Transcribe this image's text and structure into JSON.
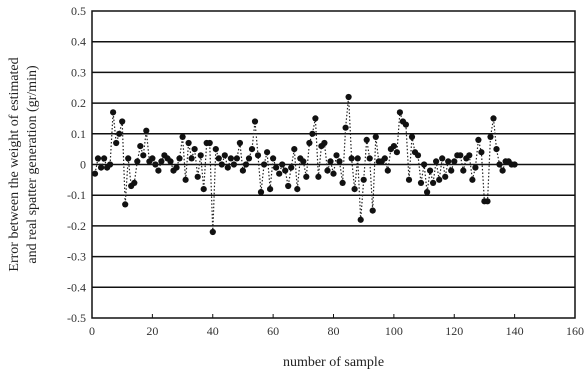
{
  "chart_data": {
    "type": "scatter",
    "title": "",
    "xlabel": "number of sample",
    "ylabel_lines": [
      "Error between the weight of estimated",
      "and real spatter generation (gr/min)"
    ],
    "xlim": [
      0,
      160
    ],
    "ylim": [
      -0.5,
      0.5
    ],
    "xticks": [
      0,
      20,
      40,
      60,
      80,
      100,
      120,
      140,
      160
    ],
    "yticks": [
      0.5,
      0.4,
      0.3,
      0.2,
      0.1,
      0,
      -0.1,
      -0.2,
      -0.3,
      -0.4,
      -0.5
    ],
    "grid": true,
    "connector": "dotted",
    "series": [
      {
        "x": [
          1,
          2,
          3,
          4,
          5,
          6,
          7,
          8,
          9,
          10,
          11,
          12,
          13,
          14,
          15,
          16,
          17,
          18,
          19,
          20,
          21,
          22,
          23,
          24,
          25,
          26,
          27,
          28,
          29,
          30,
          31,
          32,
          33,
          34,
          35,
          36,
          37,
          38,
          39,
          40,
          41,
          42,
          43,
          44,
          45,
          46,
          47,
          48,
          49,
          50,
          51,
          52,
          53,
          54,
          55,
          56,
          57,
          58,
          59,
          60,
          61,
          62,
          63,
          64,
          65,
          66,
          67,
          68,
          69,
          70,
          71,
          72,
          73,
          74,
          75,
          76,
          77,
          78,
          79,
          80,
          81,
          82,
          83,
          84,
          85,
          86,
          87,
          88,
          89,
          90,
          91,
          92,
          93,
          94,
          95,
          96,
          97,
          98,
          99,
          100,
          101,
          102,
          103,
          104,
          105,
          106,
          107,
          108,
          109,
          110,
          111,
          112,
          113,
          114,
          115,
          116,
          117,
          118,
          119,
          120,
          121,
          122,
          123,
          124,
          125,
          126,
          127,
          128,
          129,
          130,
          131,
          132,
          133,
          134,
          135,
          136,
          137,
          138,
          139,
          140
        ],
        "y": [
          -0.03,
          0.02,
          -0.01,
          0.02,
          -0.01,
          0,
          0.17,
          0.07,
          0.1,
          0.14,
          -0.13,
          0.02,
          -0.07,
          -0.06,
          0.01,
          0.06,
          0.03,
          0.11,
          0.01,
          0.02,
          0,
          -0.02,
          0.01,
          0.03,
          0.02,
          0.01,
          -0.02,
          -0.01,
          0.02,
          0.09,
          -0.05,
          0.07,
          0.02,
          0.05,
          -0.04,
          0.03,
          -0.08,
          0.07,
          0.07,
          -0.22,
          0.05,
          0.02,
          0,
          0.03,
          -0.01,
          0.02,
          0,
          0.02,
          0.07,
          -0.02,
          0,
          0.02,
          0.05,
          0.14,
          0.03,
          -0.09,
          0,
          0.04,
          -0.08,
          0.02,
          -0.01,
          -0.03,
          0,
          -0.02,
          -0.07,
          -0.01,
          0.05,
          -0.08,
          0.02,
          0.01,
          -0.04,
          0.07,
          0.1,
          0.15,
          -0.04,
          0.06,
          0.07,
          -0.02,
          0.01,
          -0.03,
          0.03,
          0.01,
          -0.06,
          0.12,
          0.22,
          0.02,
          -0.08,
          0.02,
          -0.18,
          -0.05,
          0.08,
          0.02,
          -0.15,
          0.09,
          0.01,
          0.01,
          0.02,
          -0.02,
          0.05,
          0.06,
          0.04,
          0.17,
          0.14,
          0.13,
          -0.05,
          0.09,
          0.04,
          0.03,
          -0.06,
          0,
          -0.09,
          -0.02,
          -0.06,
          0.01,
          -0.05,
          0.02,
          -0.04,
          0.01,
          -0.02,
          0.01,
          0.03,
          0.03,
          -0.02,
          0.02,
          0.03,
          -0.05,
          -0.01,
          0.08,
          0.04,
          -0.12,
          -0.12,
          0.09,
          0.15,
          0.05,
          0,
          -0.02,
          0.01,
          0.01,
          0,
          0
        ]
      }
    ]
  }
}
